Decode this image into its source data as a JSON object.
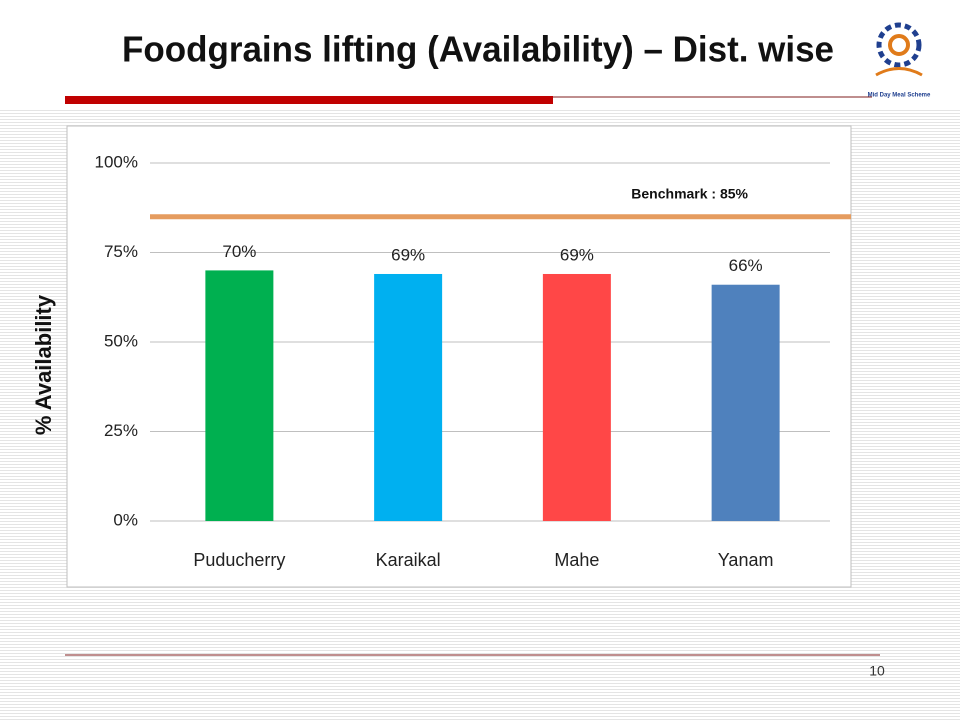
{
  "title": "Foodgrains lifting (Availability) – Dist. wise",
  "logo_caption": "Mid Day Meal Scheme",
  "slide_number": "10",
  "chart_data": {
    "type": "bar",
    "y_label": "% Availability",
    "categories": [
      "Puducherry",
      "Karaikal",
      "Mahe",
      "Yanam"
    ],
    "values": [
      70,
      69,
      69,
      66
    ],
    "value_labels": [
      "70%",
      "69%",
      "69%",
      "66%"
    ],
    "colors": [
      "#00b050",
      "#00b0f0",
      "#ff4747",
      "#4f81bd"
    ],
    "ylim": [
      0,
      100
    ],
    "yticks": [
      {
        "value": 0,
        "label": "0%"
      },
      {
        "value": 25,
        "label": "25%"
      },
      {
        "value": 50,
        "label": "50%"
      },
      {
        "value": 75,
        "label": "75%"
      },
      {
        "value": 100,
        "label": "100%"
      }
    ],
    "grid": true,
    "benchmark": {
      "value": 85,
      "label": "Benchmark : 85%",
      "color": "#e59c5f"
    }
  }
}
